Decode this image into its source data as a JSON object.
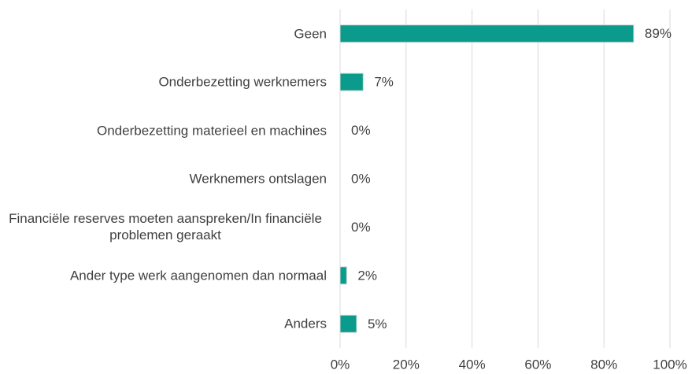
{
  "chart_data": {
    "type": "hbar",
    "categories": [
      "Geen",
      "Onderbezetting werknemers",
      "Onderbezetting materieel en machines",
      "Werknemers ontslagen",
      "Financiële reserves moeten aanspreken/In financiële problemen geraakt",
      "Ander type werk aangenomen dan normaal",
      "Anders"
    ],
    "values": [
      89,
      7,
      0,
      0,
      0,
      2,
      5
    ],
    "value_labels": [
      "89%",
      "7%",
      "0%",
      "0%",
      "0%",
      "2%",
      "5%"
    ],
    "color": "#0a9b8c",
    "xlim": [
      0,
      100
    ],
    "xticks": [
      {
        "value": 0,
        "label": "0%"
      },
      {
        "value": 20,
        "label": "20%"
      },
      {
        "value": 40,
        "label": "40%"
      },
      {
        "value": 60,
        "label": "60%"
      },
      {
        "value": 80,
        "label": "80%"
      },
      {
        "value": 100,
        "label": "100%"
      }
    ],
    "grid": true
  }
}
